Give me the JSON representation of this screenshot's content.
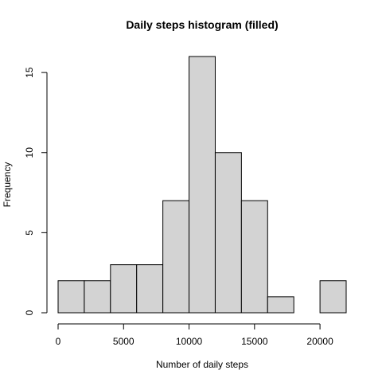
{
  "chart_data": {
    "type": "bar",
    "title": "Daily steps histogram (filled)",
    "xlabel": "Number of daily steps",
    "ylabel": "Frequency",
    "bins": [
      {
        "start": 0,
        "end": 2000,
        "count": 2
      },
      {
        "start": 2000,
        "end": 4000,
        "count": 2
      },
      {
        "start": 4000,
        "end": 6000,
        "count": 3
      },
      {
        "start": 6000,
        "end": 8000,
        "count": 3
      },
      {
        "start": 8000,
        "end": 10000,
        "count": 7
      },
      {
        "start": 10000,
        "end": 12000,
        "count": 16
      },
      {
        "start": 12000,
        "end": 14000,
        "count": 10
      },
      {
        "start": 14000,
        "end": 16000,
        "count": 7
      },
      {
        "start": 16000,
        "end": 18000,
        "count": 1
      },
      {
        "start": 18000,
        "end": 20000,
        "count": 0
      },
      {
        "start": 20000,
        "end": 22000,
        "count": 2
      }
    ],
    "xlim": [
      0,
      22000
    ],
    "ylim": [
      0,
      16
    ],
    "xticks": [
      "0",
      "5000",
      "10000",
      "15000",
      "20000"
    ],
    "yticks": [
      "0",
      "5",
      "10",
      "15"
    ],
    "bar_fill": "#d3d3d3",
    "bar_stroke": "#000000",
    "grid": false
  }
}
